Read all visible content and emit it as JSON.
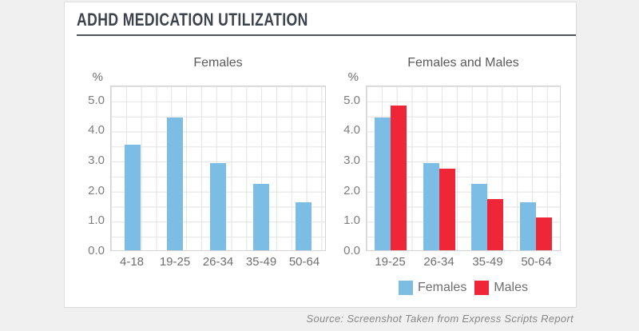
{
  "page": {
    "title": "ADHD MEDICATION UTILIZATION",
    "source": "Source: Screenshot Taken from Express Scripts Report"
  },
  "colors": {
    "females": "#7bbde4",
    "males": "#ee2638",
    "background": "#f0f0f0",
    "card": "#ffffff",
    "title_text": "#3c434c",
    "grid": "#e2e2e2"
  },
  "chart_data": [
    {
      "type": "bar",
      "title": "Females",
      "ylabel": "%",
      "xlabel": "",
      "categories": [
        "4-18",
        "19-25",
        "26-34",
        "35-49",
        "50-64"
      ],
      "series": [
        {
          "name": "Females",
          "color": "#7bbde4",
          "values": [
            3.5,
            4.4,
            2.9,
            2.2,
            1.6
          ]
        }
      ],
      "ylim": [
        0,
        5.5
      ],
      "yticks": [
        0,
        1,
        2,
        3,
        4,
        5
      ],
      "ytick_labels": [
        "0.0",
        "1.0",
        "2.0",
        "3.0",
        "4.0",
        "5.0"
      ],
      "grid": true,
      "legend": false
    },
    {
      "type": "bar",
      "title": "Females and Males",
      "ylabel": "%",
      "xlabel": "",
      "categories": [
        "19-25",
        "26-34",
        "35-49",
        "50-64"
      ],
      "series": [
        {
          "name": "Females",
          "color": "#7bbde4",
          "values": [
            4.4,
            2.9,
            2.2,
            1.6
          ]
        },
        {
          "name": "Males",
          "color": "#ee2638",
          "values": [
            4.8,
            2.7,
            1.7,
            1.1
          ]
        }
      ],
      "ylim": [
        0,
        5.5
      ],
      "yticks": [
        0,
        1,
        2,
        3,
        4,
        5
      ],
      "ytick_labels": [
        "0.0",
        "1.0",
        "2.0",
        "3.0",
        "4.0",
        "5.0"
      ],
      "grid": true,
      "legend": true,
      "legend_position": "bottom"
    }
  ]
}
